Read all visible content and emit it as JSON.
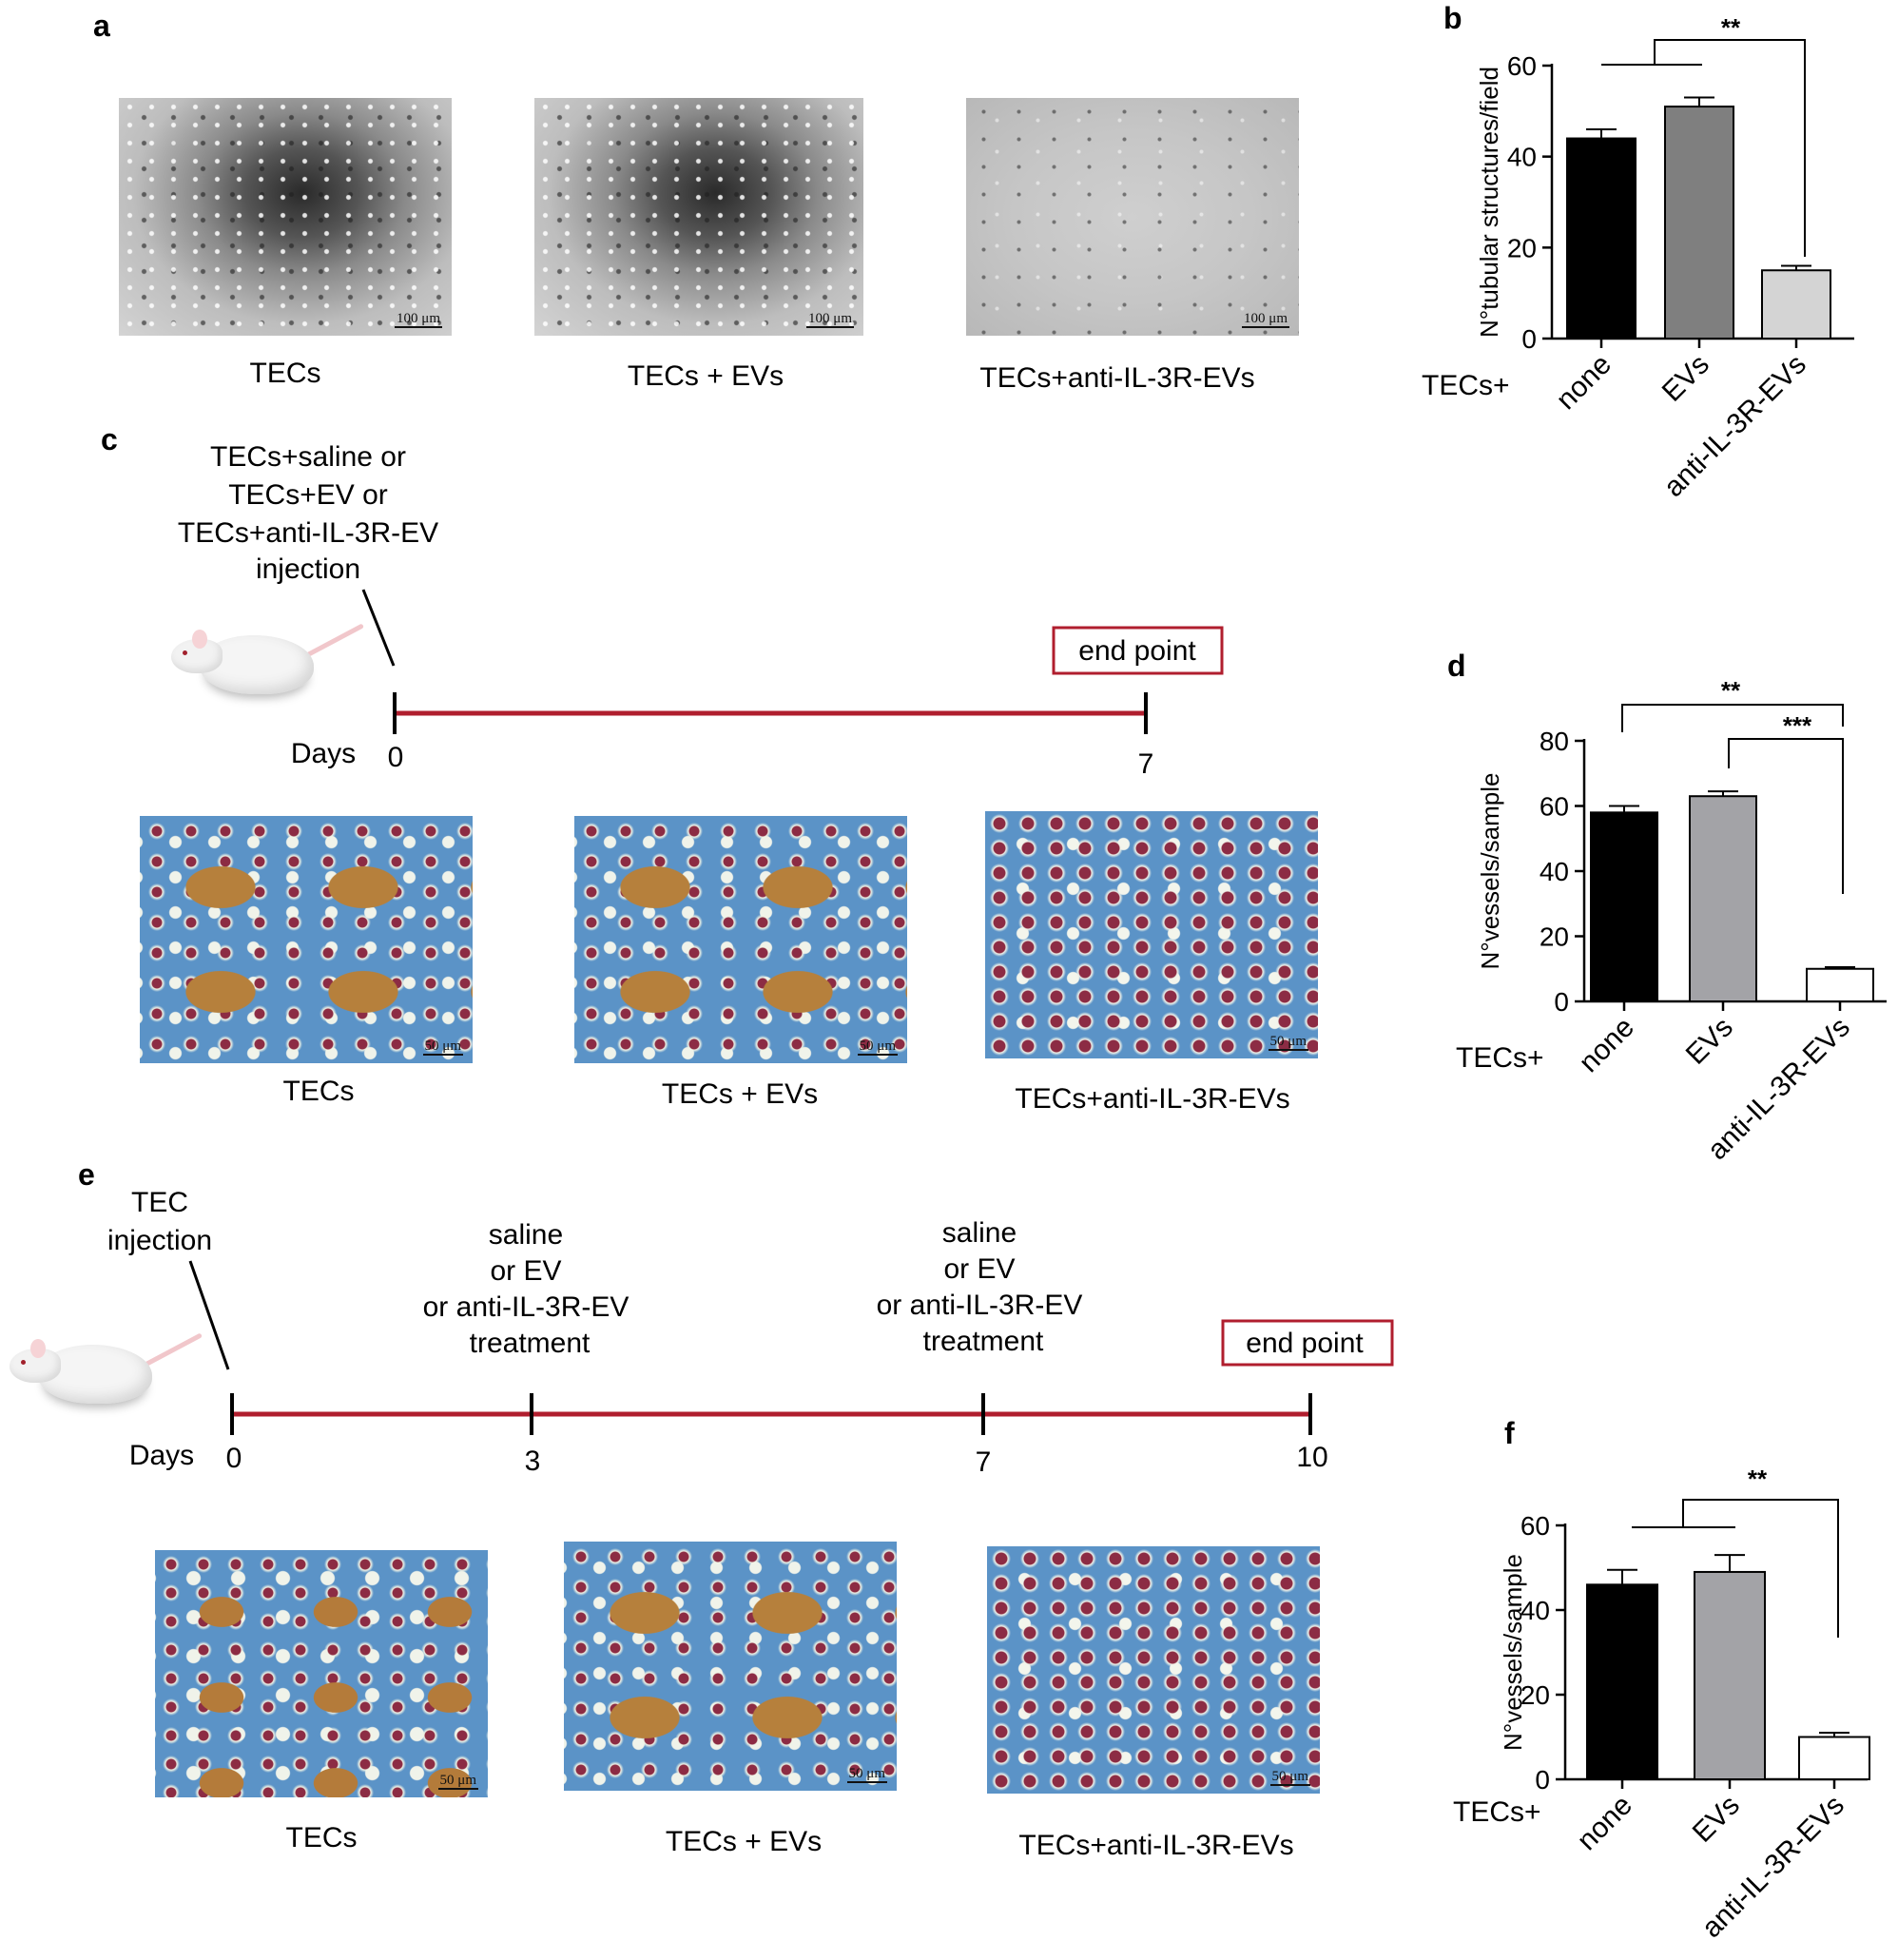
{
  "panels": {
    "a": "a",
    "b": "b",
    "c": "c",
    "d": "d",
    "e": "e",
    "f": "f"
  },
  "panel_a": {
    "captions": [
      "TECs",
      "TECs + EVs",
      "TECs+anti-IL-3R-EVs"
    ],
    "scale_bar": "100 μm"
  },
  "panel_c": {
    "injection_label": [
      "TECs+saline or",
      "TECs+EV or",
      "TECs+anti-IL-3R-EV",
      "injection"
    ],
    "end_point": "end point",
    "days_label": "Days",
    "timeline_days": [
      "0",
      "7"
    ],
    "captions": [
      "TECs",
      "TECs + EVs",
      "TECs+anti-IL-3R-EVs"
    ],
    "scale_bar": "50 μm"
  },
  "panel_e": {
    "injection_label": [
      "TEC",
      "injection"
    ],
    "treatment_label": [
      "saline",
      "or EV",
      "or anti-IL-3R-EV",
      "treatment"
    ],
    "end_point": "end point",
    "days_label": "Days",
    "timeline_days": [
      "0",
      "3",
      "7",
      "10"
    ],
    "captions": [
      "TECs",
      "TECs + EVs",
      "TECs+anti-IL-3R-EVs"
    ],
    "scale_bar": "50 μm"
  },
  "colors": {
    "timeline": "#b01e2e",
    "end_point_box": "#b01e2e",
    "black_bar": "#000000",
    "grey_bar": "#7f7f7f",
    "light_grey_bar": "#d4d4d4",
    "mid_grey_bar": "#a3a3a7",
    "white_bar": "#ffffff"
  },
  "chart_data": [
    {
      "panel": "b",
      "type": "bar",
      "categories": [
        "none",
        "EVs",
        "anti-IL-3R-EVs"
      ],
      "group_label": "TECs+",
      "values": [
        44,
        51,
        15
      ],
      "errors": [
        2,
        2,
        1
      ],
      "bar_colors": [
        "#000000",
        "#7f7f7f",
        "#d4d4d4"
      ],
      "ylabel": "N°tubular structures/field",
      "ylim": [
        0,
        60
      ],
      "yticks": [
        "0",
        "20",
        "40",
        "60"
      ],
      "significance": [
        "**"
      ]
    },
    {
      "panel": "d",
      "type": "bar",
      "categories": [
        "none",
        "EVs",
        "anti-IL-3R-EVs"
      ],
      "group_label": "TECs+",
      "values": [
        58,
        63,
        10
      ],
      "errors": [
        2,
        1.5,
        0.5
      ],
      "bar_colors": [
        "#000000",
        "#a3a3a7",
        "#ffffff"
      ],
      "ylabel": "N°vessels/sample",
      "ylim": [
        0,
        80
      ],
      "yticks": [
        "0",
        "20",
        "40",
        "60",
        "80"
      ],
      "significance": [
        "**",
        "***"
      ]
    },
    {
      "panel": "f",
      "type": "bar",
      "categories": [
        "none",
        "EVs",
        "anti-IL-3R-EVs"
      ],
      "group_label": "TECs+",
      "values": [
        46,
        49,
        10
      ],
      "errors": [
        3.5,
        4,
        1
      ],
      "bar_colors": [
        "#000000",
        "#a3a3a7",
        "#ffffff"
      ],
      "ylabel": "N°vessels/sample",
      "ylim": [
        0,
        60
      ],
      "yticks": [
        "0",
        "20",
        "40",
        "60"
      ],
      "significance": [
        "**"
      ]
    }
  ]
}
